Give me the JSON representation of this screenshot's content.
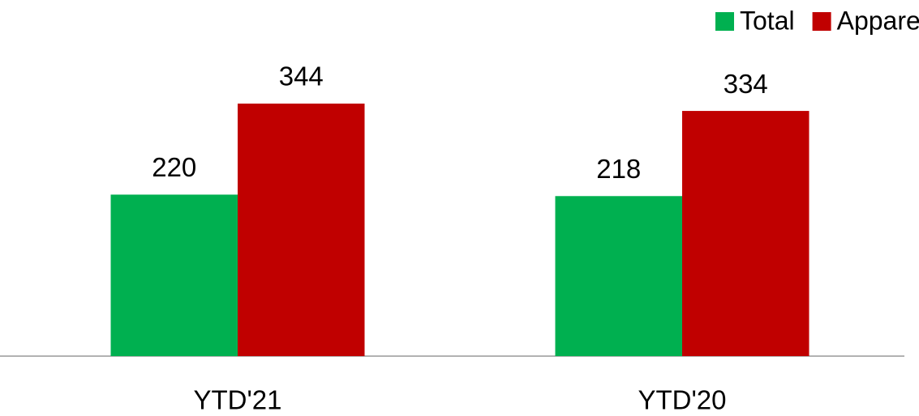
{
  "chart_data": {
    "type": "bar",
    "categories": [
      "YTD'21",
      "YTD'20"
    ],
    "series": [
      {
        "name": "Total",
        "color": "#00b050",
        "values": [
          220,
          218
        ]
      },
      {
        "name": "Apparel",
        "color": "#c00000",
        "values": [
          344,
          334
        ]
      }
    ],
    "legend": "top-right"
  }
}
